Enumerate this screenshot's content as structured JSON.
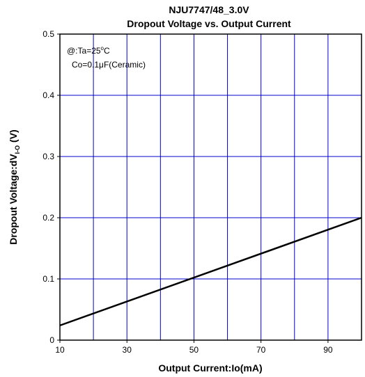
{
  "chart_data": {
    "type": "line",
    "title": "NJU7747/48_3.0V",
    "subtitle": "Dropout Voltage vs. Output Current",
    "xlabel": "Output Current:Io(mA)",
    "ylabel_main": "Dropout Voltage:dV",
    "ylabel_sub": "I-O",
    "ylabel_unit": " (V)",
    "xlim": [
      10,
      100
    ],
    "ylim": [
      0,
      0.5
    ],
    "x_ticks": [
      "10",
      "30",
      "50",
      "70",
      "90"
    ],
    "y_ticks": [
      "0",
      "0.1",
      "0.2",
      "0.3",
      "0.4",
      "0.5"
    ],
    "grid": true,
    "annotations": {
      "line1_prefix": "@:Ta=25",
      "line1_sup": "o",
      "line1_suffix": "C",
      "line2": "Co=0.1μF(Ceramic)"
    },
    "series": [
      {
        "x": [
          10,
          100
        ],
        "y": [
          0.024,
          0.2
        ]
      }
    ]
  },
  "colors": {
    "grid": "#0000cc",
    "frame": "#000000",
    "line": "#000000"
  }
}
